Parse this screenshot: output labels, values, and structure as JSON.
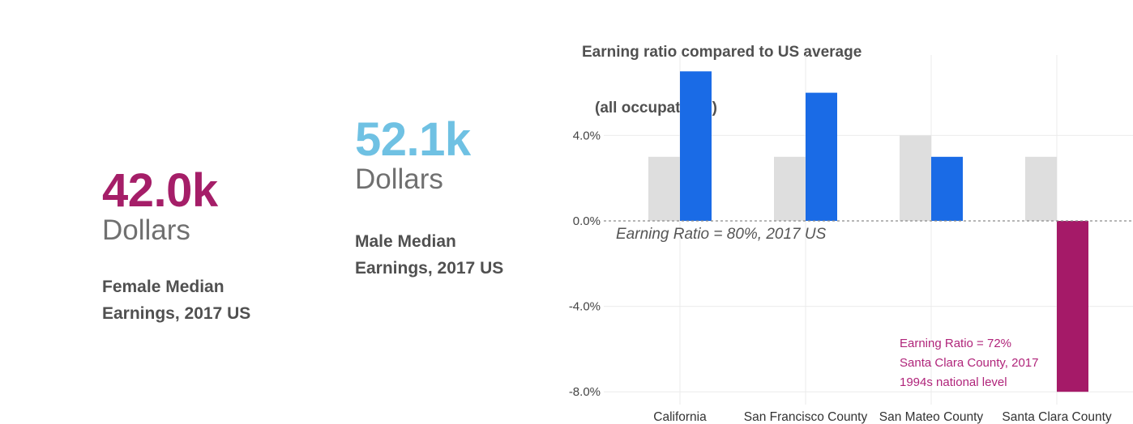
{
  "female": {
    "value": "42.0k",
    "unit": "Dollars",
    "caption_line1": "Female Median",
    "caption_line2": "Earnings, 2017 US"
  },
  "male": {
    "value": "52.1k",
    "unit": "Dollars",
    "caption_line1": "Male Median",
    "caption_line2": "Earnings, 2017 US"
  },
  "colors": {
    "female": "#a51e68",
    "male": "#6fc1e3",
    "bar_blue": "#1a6be6",
    "bar_grey": "#dedede",
    "bar_magenta": "#a51a68"
  },
  "chart_data": {
    "type": "bar",
    "title_line1": "Earning ratio compared to US average",
    "title_line2": "(all occupations)",
    "categories": [
      "California",
      "San Francisco County",
      "San Mateo County",
      "Santa Clara County"
    ],
    "series": [
      {
        "values": [
          3.0,
          3.0,
          4.0,
          3.0
        ],
        "color": "#dedede"
      },
      {
        "values": [
          7.0,
          6.0,
          3.0,
          -8.0
        ],
        "color": "#1a6be6",
        "negative_color": "#a51a68"
      }
    ],
    "ylim": [
      -8.6,
      7.8
    ],
    "yticks": [
      {
        "value": -8,
        "label": "-8.0%"
      },
      {
        "value": -4,
        "label": "-4.0%"
      },
      {
        "value": 0,
        "label": "0.0%"
      },
      {
        "value": 4,
        "label": "4.0%"
      }
    ],
    "grid": true,
    "reference_line": {
      "value": 0,
      "label": "Earning Ratio = 80%, 2017 US"
    },
    "annotation": {
      "lines": [
        "Earning Ratio = 72%",
        "Santa Clara County, 2017",
        "1994s national level"
      ],
      "color": "#b0247a"
    }
  }
}
